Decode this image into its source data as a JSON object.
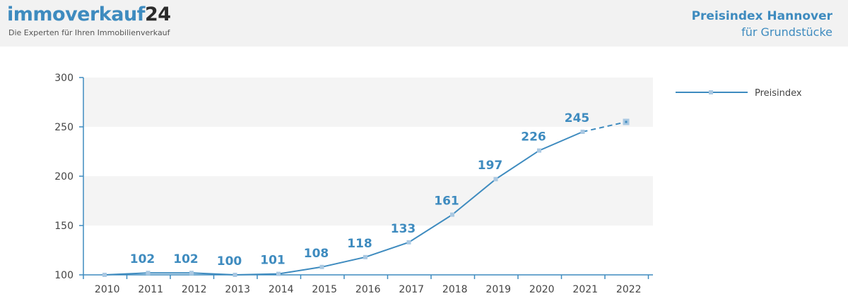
{
  "header": {
    "logo_text": "immoverkauf",
    "logo_number": "24",
    "tagline": "Die Experten für Ihren Immobilienverkauf",
    "title": "Preisindex Hannover",
    "subtitle": "für Grundstücke"
  },
  "colors": {
    "accent": "#3e8bbf",
    "marker": "#a9c8e2",
    "band": "#f4f4f4",
    "axis": "#3e8bbf",
    "header_bg": "#f2f2f2"
  },
  "chart_data": {
    "type": "line",
    "categories": [
      "2010",
      "2011",
      "2012",
      "2013",
      "2014",
      "2015",
      "2016",
      "2017",
      "2018",
      "2019",
      "2020",
      "2021",
      "2022"
    ],
    "series": [
      {
        "name": "Preisindex",
        "values": [
          100,
          102,
          102,
          100,
          101,
          108,
          118,
          133,
          161,
          197,
          226,
          245,
          255
        ],
        "data_labels": [
          "",
          "102",
          "102",
          "100",
          "101",
          "108",
          "118",
          "133",
          "161",
          "197",
          "226",
          "245",
          ""
        ],
        "projected_from_index": 11
      }
    ],
    "yticks": [
      "100",
      "150",
      "200",
      "250",
      "300"
    ],
    "ylim": [
      100,
      300
    ],
    "legend_position": "right",
    "grid": "alternating horizontal bands"
  }
}
